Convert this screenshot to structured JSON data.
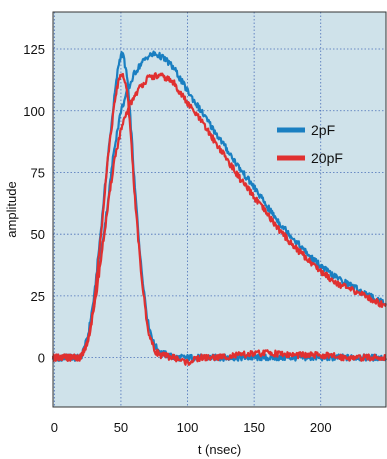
{
  "chart_data": {
    "type": "line",
    "title": "",
    "xlabel": "t (nsec)",
    "ylabel": "amplitude",
    "xlim": [
      -1,
      249
    ],
    "ylim": [
      -20,
      140
    ],
    "xticks": [
      0,
      50,
      100,
      150,
      200
    ],
    "yticks": [
      0,
      25,
      50,
      75,
      100,
      125
    ],
    "grid": true,
    "legend_position": "right",
    "colors": {
      "background": "#cfe2ea",
      "grid": "#4a6fb8",
      "2pF": "#1a7fc1",
      "20pF": "#e03030"
    },
    "series": [
      {
        "name": "2pF",
        "pulses": [
          {
            "x": [
              0,
              10,
              20,
              25,
              30,
              35,
              40,
              45,
              48,
              50,
              52,
              55,
              58,
              60,
              65,
              70,
              75,
              80,
              90,
              100,
              110,
              120,
              140,
              160,
              180,
              200,
              220,
              240
            ],
            "y": [
              0,
              0,
              0,
              8,
              25,
              52,
              80,
              105,
              118,
              123,
              122,
              112,
              90,
              72,
              38,
              15,
              5,
              2,
              0,
              0,
              0,
              0,
              0,
              0,
              0,
              0,
              0,
              0
            ]
          },
          {
            "x": [
              0,
              10,
              20,
              25,
              30,
              35,
              40,
              45,
              50,
              55,
              60,
              65,
              70,
              75,
              80,
              85,
              90,
              100,
              110,
              120,
              130,
              140,
              150,
              160,
              170,
              180,
              190,
              200,
              210,
              220,
              230,
              240,
              249
            ],
            "y": [
              0,
              0,
              0,
              8,
              22,
              42,
              62,
              85,
              100,
              108,
              115,
              119,
              122,
              123,
              122,
              120,
              117,
              108,
              100,
              92,
              84,
              76,
              69,
              61,
              54,
              48,
              42,
              37,
              33,
              30,
              27,
              24,
              22
            ]
          }
        ]
      },
      {
        "name": "20pF",
        "pulses": [
          {
            "x": [
              0,
              10,
              20,
              25,
              30,
              35,
              40,
              45,
              48,
              50,
              52,
              55,
              58,
              60,
              65,
              70,
              75,
              80,
              90,
              100,
              110,
              120,
              140,
              160,
              180,
              200,
              220,
              240
            ],
            "y": [
              0,
              0,
              0,
              6,
              22,
              50,
              80,
              102,
              112,
              115,
              114,
              106,
              86,
              68,
              35,
              12,
              3,
              1,
              0,
              -2,
              0,
              0,
              1,
              2,
              1,
              1,
              0,
              0
            ]
          },
          {
            "x": [
              0,
              10,
              20,
              25,
              30,
              35,
              40,
              45,
              50,
              55,
              60,
              65,
              70,
              75,
              80,
              85,
              90,
              100,
              110,
              120,
              130,
              140,
              150,
              160,
              170,
              180,
              190,
              200,
              210,
              220,
              230,
              240,
              249
            ],
            "y": [
              0,
              0,
              0,
              6,
              20,
              40,
              60,
              80,
              92,
              100,
              106,
              110,
              113,
              114,
              114,
              113,
              111,
              103,
              96,
              88,
              80,
              72,
              65,
              58,
              51,
              45,
              40,
              35,
              31,
              28,
              26,
              23,
              21
            ]
          }
        ]
      }
    ]
  }
}
